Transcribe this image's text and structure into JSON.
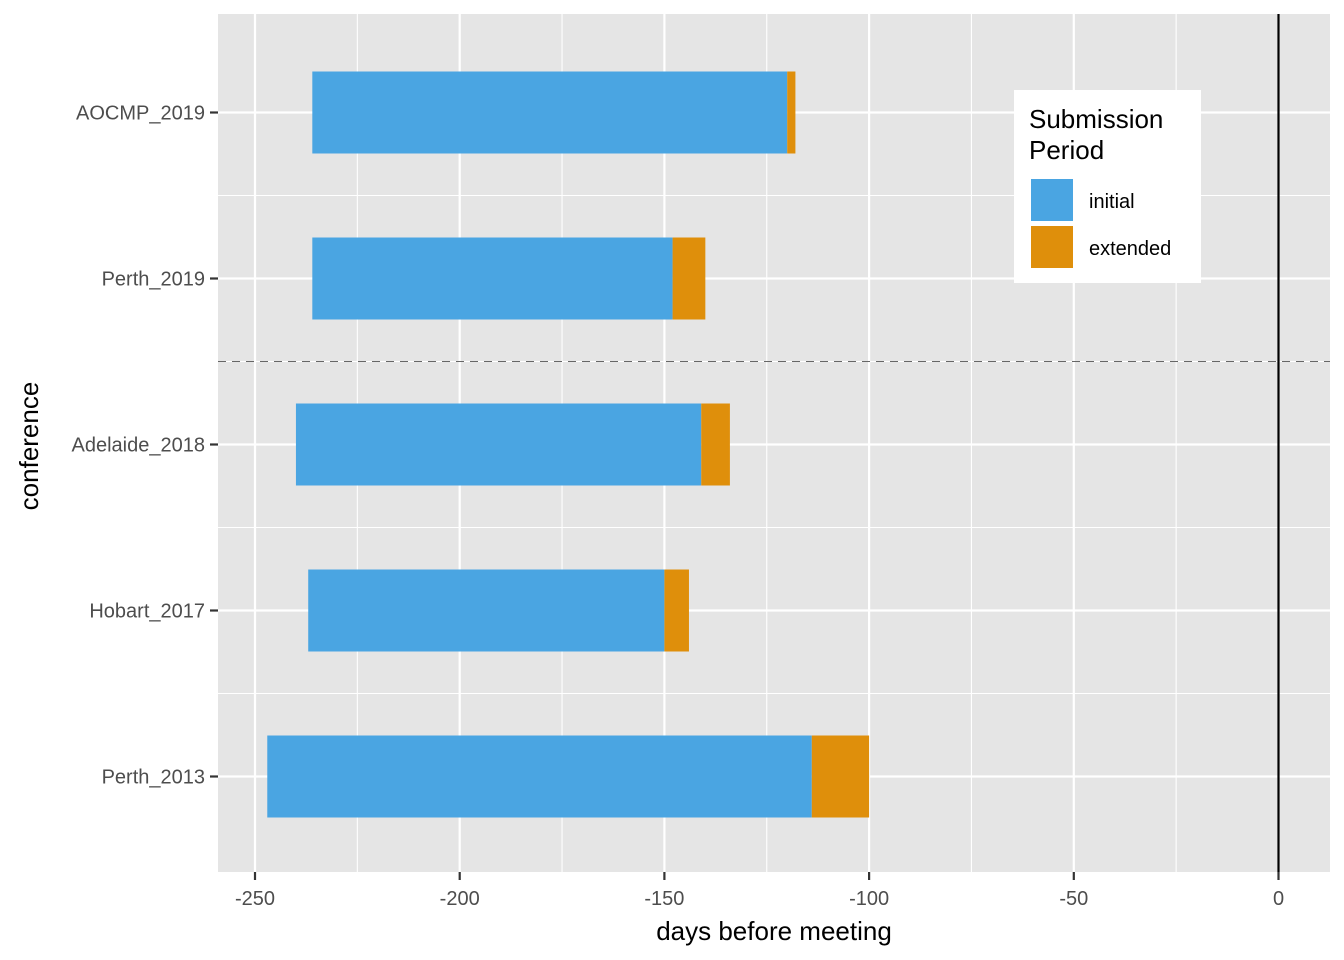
{
  "chart_data": {
    "type": "bar",
    "orientation": "horizontal",
    "stacked": true,
    "xlabel": "days before meeting",
    "ylabel": "conference",
    "xlim": [
      -260,
      12
    ],
    "x_ticks": [
      -250,
      -200,
      -150,
      -100,
      -50,
      0
    ],
    "x_tick_labels": [
      "-250",
      "-200",
      "-150",
      "-100",
      "-50",
      "0"
    ],
    "x_minor_ticks": [
      -225,
      -175,
      -125,
      -75,
      -25
    ],
    "categories": [
      "Perth_2013",
      "Hobart_2017",
      "Adelaide_2018",
      "Perth_2019",
      "AOCMP_2019"
    ],
    "series": [
      {
        "name": "initial",
        "color": "#4aa5e2",
        "start": [
          -247,
          -237,
          -240,
          -236,
          -236
        ],
        "end": [
          -114,
          -150,
          -141,
          -148,
          -120
        ]
      },
      {
        "name": "extended",
        "color": "#df8f0b",
        "start": [
          -114,
          -150,
          -141,
          -148,
          -120
        ],
        "end": [
          -100,
          -144,
          -134,
          -140,
          -118
        ]
      }
    ],
    "reference_lines": [
      {
        "type": "vertical",
        "x": 0,
        "style": "solid",
        "color": "#000000"
      },
      {
        "type": "horizontal",
        "between": [
          "Adelaide_2018",
          "Perth_2019"
        ],
        "style": "dashed",
        "color": "#666666"
      }
    ],
    "legend": {
      "title_lines": [
        "Submission",
        "Period"
      ],
      "entries": [
        {
          "label": "initial",
          "color": "#4aa5e2"
        },
        {
          "label": "extended",
          "color": "#df8f0b"
        }
      ],
      "placement": "top-right"
    },
    "grid": true,
    "panel_background": "#e5e5e5",
    "grid_color": "#ffffff"
  }
}
